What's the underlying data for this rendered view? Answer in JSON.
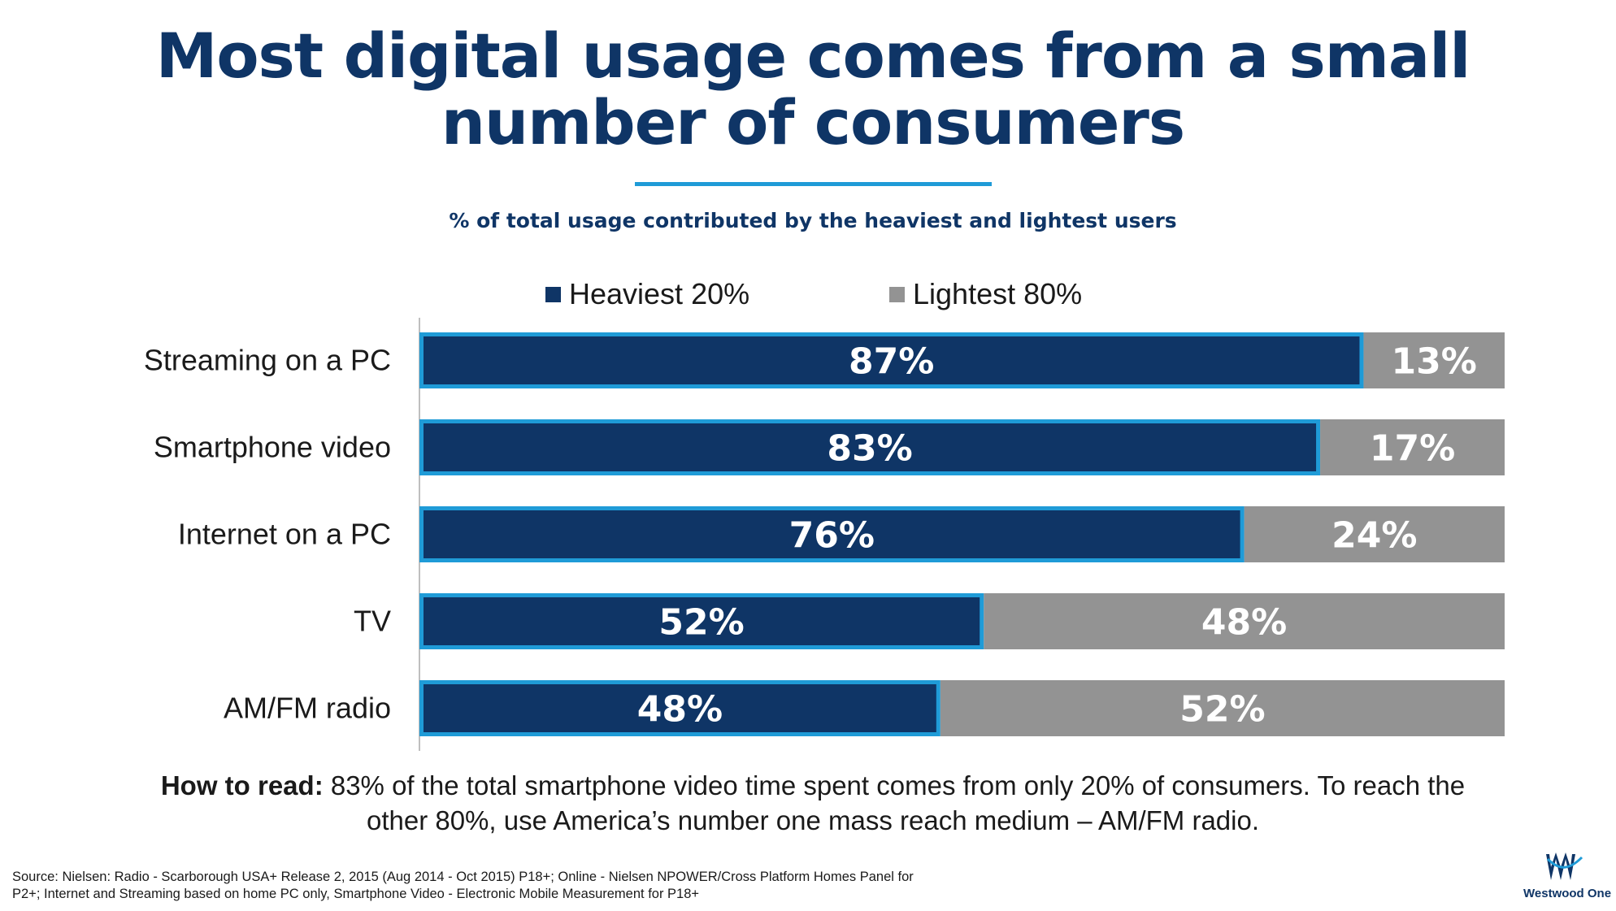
{
  "title_line1": "Most digital usage comes from a small",
  "title_line2": "number of consumers",
  "chart_data": {
    "type": "bar",
    "orientation": "horizontal",
    "stacked": true,
    "subtitle": "% of total usage contributed by the heaviest and lightest users",
    "categories": [
      "Streaming on a PC",
      "Smartphone video",
      "Internet on a PC",
      "TV",
      "AM/FM radio"
    ],
    "series": [
      {
        "name": "Heaviest 20%",
        "values": [
          87,
          83,
          76,
          52,
          48
        ],
        "color": "#0f3566",
        "border_color": "#1f9bd7"
      },
      {
        "name": "Lightest 80%",
        "values": [
          13,
          17,
          24,
          48,
          52
        ],
        "color": "#939393"
      }
    ],
    "value_suffix": "%",
    "xlim": [
      0,
      100
    ],
    "legend_position": "top",
    "grid": false
  },
  "how_to_read": {
    "label": "How to read:",
    "line1": " 83% of the total smartphone video time spent comes from only 20% of consumers. To reach the",
    "line2": "other 80%, use America’s number one mass reach medium – AM/FM radio."
  },
  "source": {
    "line1": "Source: Nielsen: Radio - Scarborough USA+ Release 2, 2015 (Aug 2014 - Oct 2015) P18+; Online - Nielsen NPOWER/Cross Platform Homes Panel for",
    "line2": "P2+; Internet and Streaming based on home PC only, Smartphone Video - Electronic Mobile Measurement for P18+"
  },
  "logo": {
    "text": "Westwood One",
    "icon": "westwood-one-logo"
  }
}
